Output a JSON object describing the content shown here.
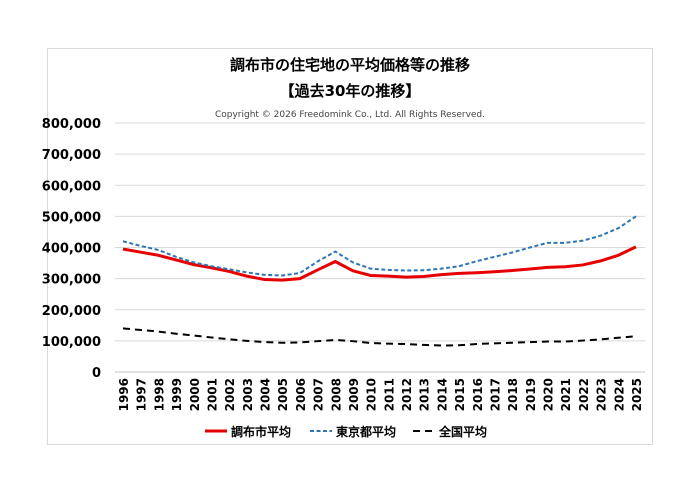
{
  "chart_data": {
    "type": "line",
    "title": "調布市の住宅地の平均価格等の推移",
    "subtitle": "【過去30年の推移】",
    "copyright": "Copyright © 2026 Freedomink Co., Ltd. All Rights Reserved.",
    "xlabel": "",
    "ylabel": "",
    "ylim": [
      0,
      800000
    ],
    "yticks": [
      "0",
      "100,000",
      "200,000",
      "300,000",
      "400,000",
      "500,000",
      "600,000",
      "700,000",
      "800,000"
    ],
    "grid": true,
    "legend_position": "bottom",
    "categories": [
      "1996",
      "1997",
      "1998",
      "1999",
      "2000",
      "2001",
      "2002",
      "2003",
      "2004",
      "2005",
      "2006",
      "2007",
      "2008",
      "2009",
      "2010",
      "2011",
      "2012",
      "2013",
      "2014",
      "2015",
      "2016",
      "2017",
      "2018",
      "2019",
      "2020",
      "2021",
      "2022",
      "2023",
      "2024",
      "2025"
    ],
    "series": [
      {
        "name": "調布市平均",
        "color": "#e60000",
        "style": "solid",
        "values": [
          395000,
          385000,
          375000,
          360000,
          345000,
          335000,
          323000,
          308000,
          297000,
          295000,
          300000,
          328000,
          355000,
          325000,
          310000,
          308000,
          305000,
          307000,
          313000,
          317000,
          319000,
          322000,
          326000,
          331000,
          336000,
          338000,
          344000,
          357000,
          375000,
          402000
        ]
      },
      {
        "name": "東京都平均",
        "color": "#2e75b6",
        "style": "dashed",
        "values": [
          420000,
          405000,
          392000,
          370000,
          352000,
          340000,
          330000,
          320000,
          312000,
          310000,
          318000,
          355000,
          387000,
          352000,
          332000,
          328000,
          326000,
          327000,
          332000,
          340000,
          356000,
          370000,
          384000,
          400000,
          415000,
          415000,
          422000,
          438000,
          462000,
          500000
        ]
      },
      {
        "name": "全国平均",
        "color": "#000000",
        "style": "dashed",
        "values": [
          140000,
          135000,
          130000,
          123000,
          117000,
          111000,
          105000,
          100000,
          96000,
          94000,
          95000,
          99000,
          103000,
          99000,
          93000,
          91000,
          90000,
          87000,
          85000,
          86000,
          90000,
          92000,
          94000,
          96000,
          98000,
          98000,
          101000,
          105000,
          110000,
          115000
        ]
      }
    ]
  }
}
